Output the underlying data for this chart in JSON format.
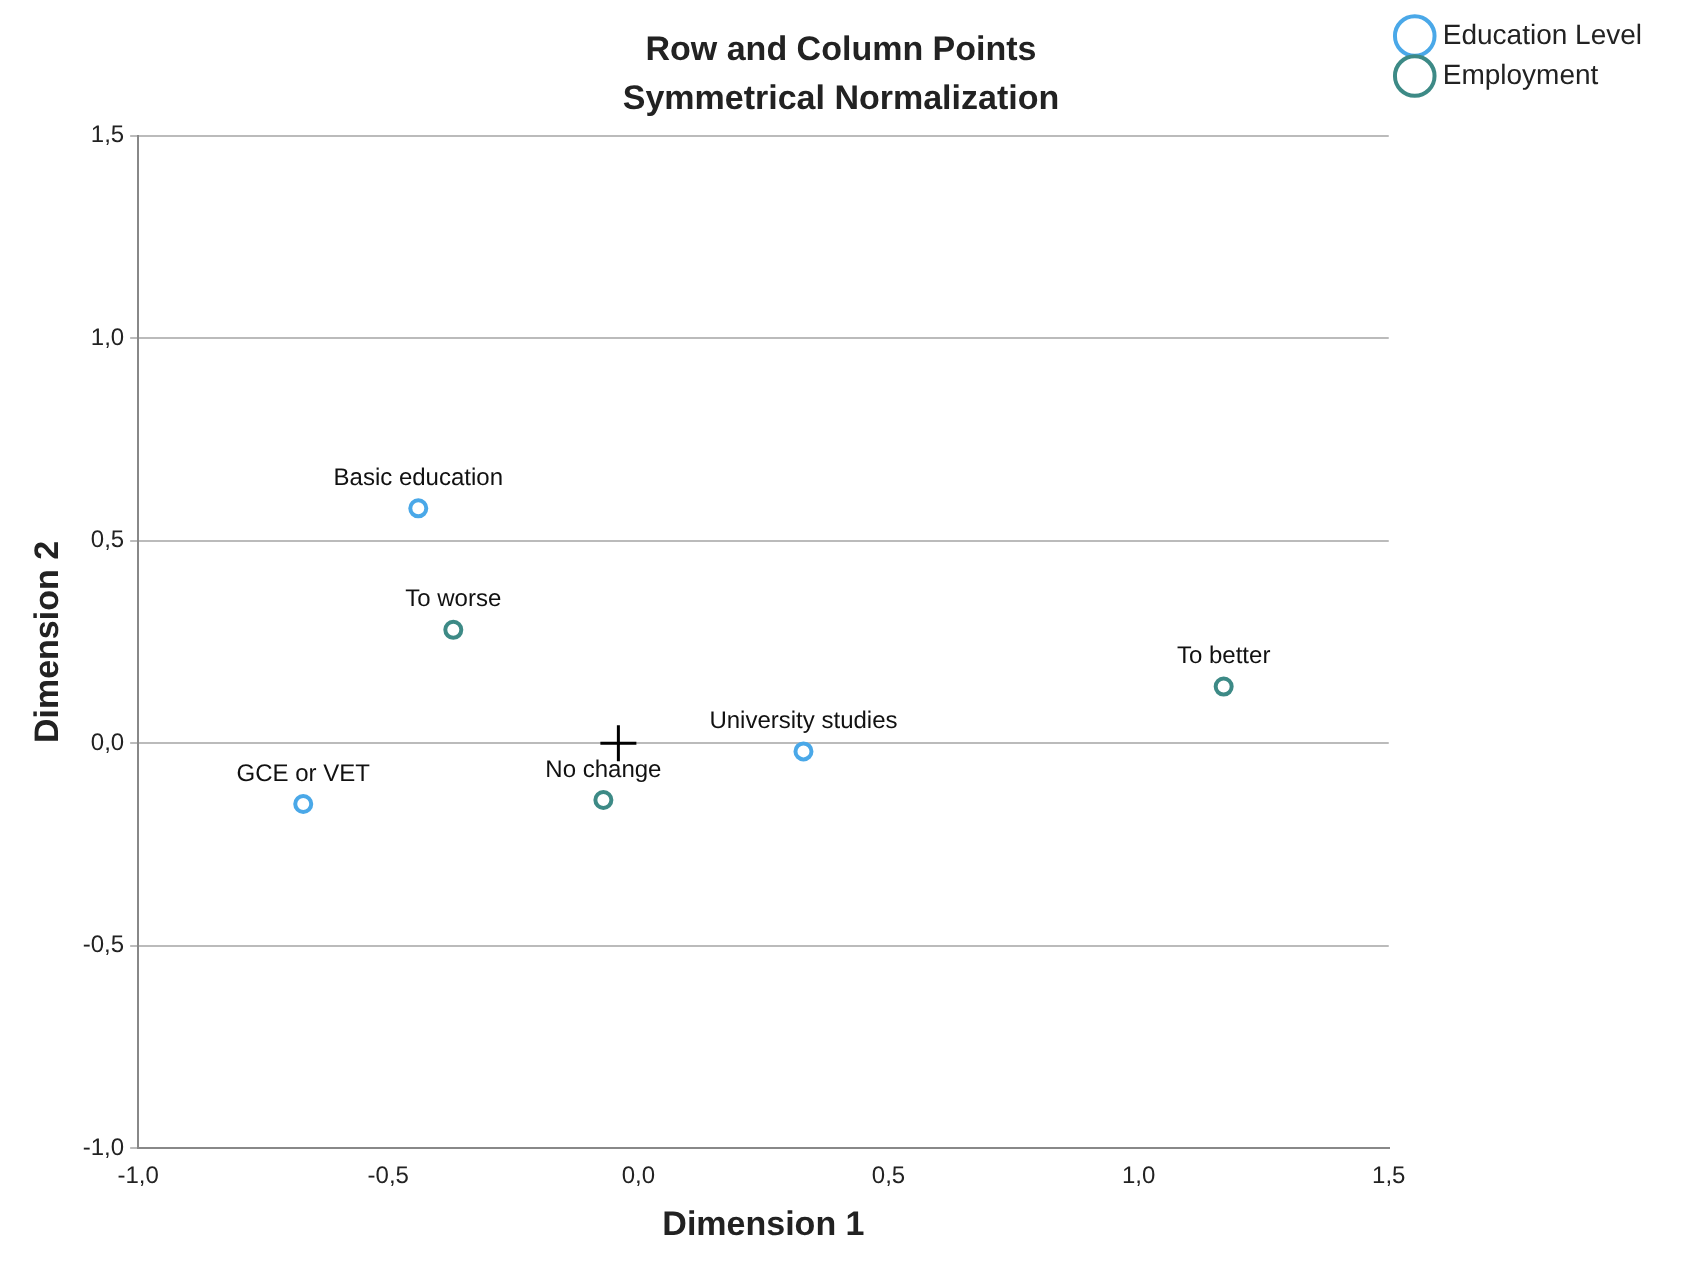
{
  "chart_data": {
    "type": "scatter",
    "title": "Row and Column Points",
    "subtitle": "Symmetrical Normalization",
    "xlabel": "Dimension 1",
    "ylabel": "Dimension 2",
    "series": [
      {
        "name": "Education Level",
        "color": "#4aa8e8",
        "x": [
          -0.44,
          -0.67,
          0.33
        ],
        "values": [
          0.58,
          -0.15,
          -0.02
        ]
      },
      {
        "name": "Employment",
        "color": "#3d8a86",
        "x": [
          -0.37,
          -0.07,
          1.17
        ],
        "values": [
          0.28,
          -0.14,
          0.14
        ]
      },
      {
        "color": "#000000",
        "marker": "cross",
        "x": [
          -0.04
        ],
        "values": [
          0
        ]
      }
    ],
    "annotations": [
      {
        "text": "Basic education",
        "x": -0.44,
        "y": 0.58
      },
      {
        "text": "GCE or VET",
        "x": -0.67,
        "y": -0.15
      },
      {
        "text": "University studies",
        "x": 0.33,
        "y": -0.02
      },
      {
        "text": "To worse",
        "x": -0.37,
        "y": 0.28
      },
      {
        "text": "No change",
        "x": -0.07,
        "y": -0.14
      },
      {
        "text": "To better",
        "x": 1.17,
        "y": 0.14
      }
    ],
    "xlim": [
      -1.0,
      1.5
    ],
    "xticks": [
      {
        "value": -1.0,
        "label": "-1,0"
      },
      {
        "value": -0.5,
        "label": "-0,5"
      },
      {
        "value": 0,
        "label": "0,0"
      },
      {
        "value": 0.5,
        "label": "0,5"
      },
      {
        "value": 1.0,
        "label": "1,0"
      },
      {
        "value": 1.5,
        "label": "1,5"
      }
    ],
    "ylim": [
      -1.0,
      1.5
    ],
    "yticks": [
      {
        "value": -1.0,
        "label": "-1,0"
      },
      {
        "value": -0.5,
        "label": "-0,5"
      },
      {
        "value": 0,
        "label": "0,0"
      },
      {
        "value": 0.5,
        "label": "0,5"
      },
      {
        "value": 1.0,
        "label": "1,0"
      },
      {
        "value": 1.5,
        "label": "1,5"
      }
    ],
    "grid": "y",
    "legend": "top right",
    "marker": "circle"
  }
}
